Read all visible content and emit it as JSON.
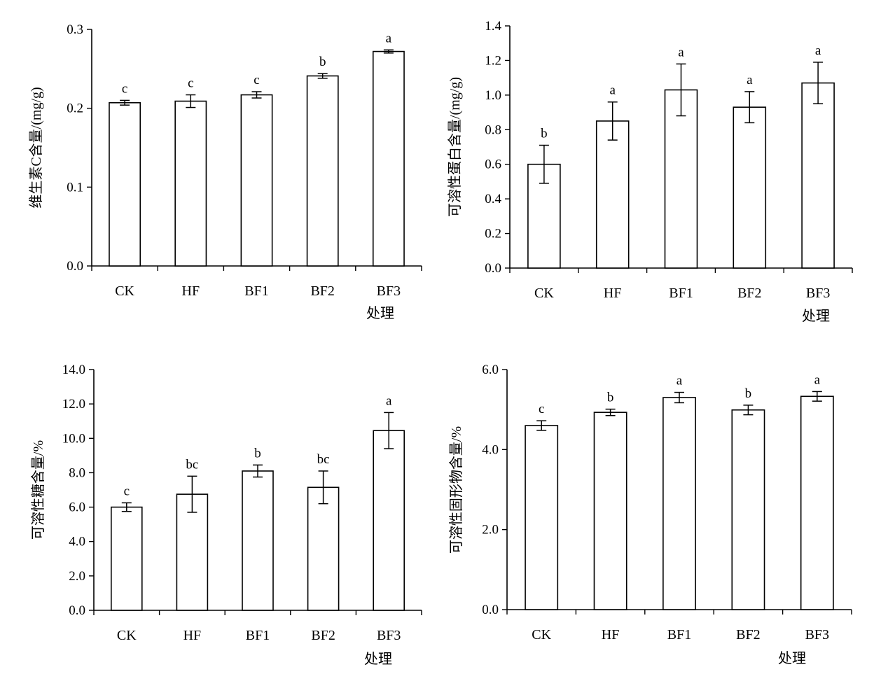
{
  "chart_data": [
    {
      "type": "bar",
      "categories": [
        "CK",
        "HF",
        "BF1",
        "BF2",
        "BF3"
      ],
      "values": [
        0.207,
        0.209,
        0.217,
        0.241,
        0.272
      ],
      "errors": [
        0.003,
        0.008,
        0.004,
        0.003,
        0.002
      ],
      "significance": [
        "c",
        "c",
        "c",
        "b",
        "a"
      ],
      "ylabel": "维生素C含量/(mg/g)",
      "xlabel": "处理",
      "ylim": [
        0,
        0.3
      ],
      "yticks": [
        "0.0",
        "0.1",
        "0.2",
        "0.3"
      ]
    },
    {
      "type": "bar",
      "categories": [
        "CK",
        "HF",
        "BF1",
        "BF2",
        "BF3"
      ],
      "values": [
        0.6,
        0.85,
        1.03,
        0.93,
        1.07
      ],
      "errors": [
        0.11,
        0.11,
        0.15,
        0.09,
        0.12
      ],
      "significance": [
        "b",
        "a",
        "a",
        "a",
        "a"
      ],
      "ylabel": "可溶性蛋白含量/(mg/g)",
      "xlabel": "处理",
      "ylim": [
        0,
        1.4
      ],
      "yticks": [
        "0.0",
        "0.2",
        "0.4",
        "0.6",
        "0.8",
        "1.0",
        "1.2",
        "1.4"
      ]
    },
    {
      "type": "bar",
      "categories": [
        "CK",
        "HF",
        "BF1",
        "BF2",
        "BF3"
      ],
      "values": [
        6.0,
        6.75,
        8.1,
        7.15,
        10.45
      ],
      "errors": [
        0.25,
        1.05,
        0.35,
        0.95,
        1.05
      ],
      "significance": [
        "c",
        "bc",
        "b",
        "bc",
        "a"
      ],
      "ylabel": "可溶性糖含量/%",
      "xlabel": "处理",
      "ylim": [
        0,
        14
      ],
      "yticks": [
        "0.0",
        "2.0",
        "4.0",
        "6.0",
        "8.0",
        "10.0",
        "12.0",
        "14.0"
      ]
    },
    {
      "type": "bar",
      "categories": [
        "CK",
        "HF",
        "BF1",
        "BF2",
        "BF3"
      ],
      "values": [
        4.6,
        4.93,
        5.3,
        4.99,
        5.33
      ],
      "errors": [
        0.12,
        0.08,
        0.13,
        0.12,
        0.12
      ],
      "significance": [
        "c",
        "b",
        "a",
        "b",
        "a"
      ],
      "ylabel": "可溶性固形物含量/%",
      "xlabel": "处理",
      "ylim": [
        0,
        6
      ],
      "yticks": [
        "0.0",
        "2.0",
        "4.0",
        "6.0"
      ]
    }
  ]
}
